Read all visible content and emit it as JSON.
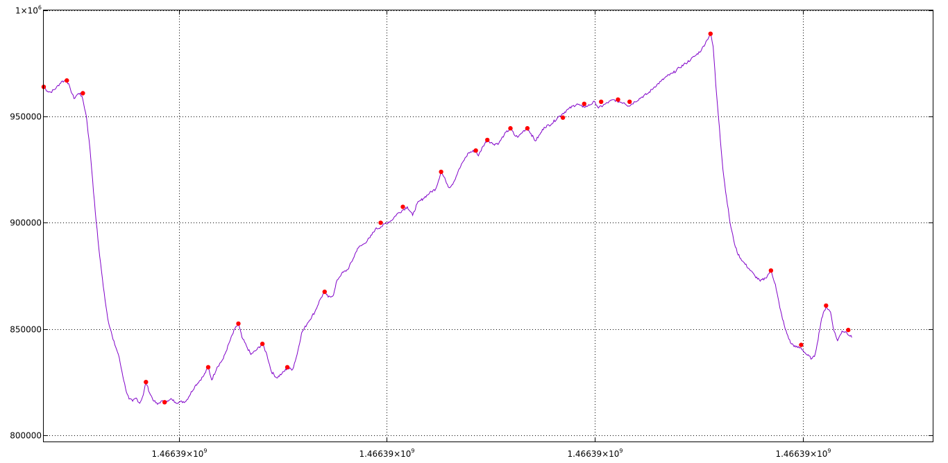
{
  "chart_data": {
    "type": "line",
    "title": "",
    "xlabel": "",
    "ylabel": "",
    "grid": true,
    "legend": "none",
    "ylim": [
      797000,
      1000000
    ],
    "xlim": [
      0,
      1000
    ],
    "colors": {
      "line": "#7f00c8",
      "marker": "#ff0000",
      "grid": "#000000"
    },
    "y_ticks": [
      {
        "v": 1000000,
        "base": "1×10",
        "exp": "6"
      },
      {
        "v": 950000,
        "base": "950000",
        "exp": ""
      },
      {
        "v": 900000,
        "base": "900000",
        "exp": ""
      },
      {
        "v": 850000,
        "base": "850000",
        "exp": ""
      },
      {
        "v": 800000,
        "base": "800000",
        "exp": ""
      }
    ],
    "x_ticks": [
      {
        "v": 152,
        "base": "1.46639×10",
        "exp": "9"
      },
      {
        "v": 386,
        "base": "1.46639×10",
        "exp": "9"
      },
      {
        "v": 620,
        "base": "1.46639×10",
        "exp": "9"
      },
      {
        "v": 854,
        "base": "1.46639×10",
        "exp": "9"
      }
    ],
    "series": [
      {
        "values": [
          [
            0,
            964000
          ],
          [
            4,
            962000
          ],
          [
            8,
            961500
          ],
          [
            14,
            963500
          ],
          [
            20,
            966500
          ],
          [
            26,
            967000
          ],
          [
            30,
            963000
          ],
          [
            34,
            958500
          ],
          [
            38,
            960500
          ],
          [
            41,
            961000
          ],
          [
            44,
            958000
          ],
          [
            48,
            950000
          ],
          [
            52,
            935000
          ],
          [
            55,
            920000
          ],
          [
            58,
            905000
          ],
          [
            62,
            888000
          ],
          [
            67,
            870000
          ],
          [
            72,
            855000
          ],
          [
            78,
            845000
          ],
          [
            84,
            838000
          ],
          [
            88,
            830000
          ],
          [
            92,
            822000
          ],
          [
            96,
            817000
          ],
          [
            100,
            816000
          ],
          [
            104,
            817500
          ],
          [
            108,
            815000
          ],
          [
            112,
            819000
          ],
          [
            115,
            825000
          ],
          [
            119,
            820000
          ],
          [
            124,
            816000
          ],
          [
            128,
            814500
          ],
          [
            132,
            816000
          ],
          [
            136,
            815500
          ],
          [
            140,
            816000
          ],
          [
            144,
            817000
          ],
          [
            148,
            815500
          ],
          [
            152,
            815500
          ],
          [
            160,
            816000
          ],
          [
            170,
            823000
          ],
          [
            180,
            828000
          ],
          [
            185,
            832000
          ],
          [
            189,
            826000
          ],
          [
            195,
            832000
          ],
          [
            202,
            836000
          ],
          [
            210,
            845000
          ],
          [
            215,
            850000
          ],
          [
            219,
            852500
          ],
          [
            223,
            846000
          ],
          [
            228,
            842000
          ],
          [
            233,
            838000
          ],
          [
            239,
            840000
          ],
          [
            246,
            843000
          ],
          [
            251,
            838000
          ],
          [
            256,
            830000
          ],
          [
            262,
            827000
          ],
          [
            268,
            829000
          ],
          [
            274,
            831500
          ],
          [
            280,
            831000
          ],
          [
            285,
            838000
          ],
          [
            290,
            848000
          ],
          [
            297,
            853000
          ],
          [
            305,
            858000
          ],
          [
            311,
            864000
          ],
          [
            316,
            867500
          ],
          [
            320,
            865000
          ],
          [
            326,
            866000
          ],
          [
            330,
            873000
          ],
          [
            335,
            876000
          ],
          [
            342,
            878000
          ],
          [
            348,
            883000
          ],
          [
            353,
            888000
          ],
          [
            360,
            890000
          ],
          [
            367,
            893000
          ],
          [
            373,
            897000
          ],
          [
            379,
            898000
          ],
          [
            386,
            900000
          ],
          [
            391,
            901000
          ],
          [
            397,
            904000
          ],
          [
            404,
            906000
          ],
          [
            409,
            907500
          ],
          [
            415,
            903500
          ],
          [
            420,
            909000
          ],
          [
            427,
            911500
          ],
          [
            434,
            914000
          ],
          [
            441,
            916000
          ],
          [
            447,
            924000
          ],
          [
            452,
            920000
          ],
          [
            456,
            916500
          ],
          [
            461,
            919000
          ],
          [
            466,
            924000
          ],
          [
            472,
            929000
          ],
          [
            478,
            933000
          ],
          [
            486,
            934000
          ],
          [
            489,
            931500
          ],
          [
            494,
            936000
          ],
          [
            499,
            939000
          ],
          [
            506,
            937000
          ],
          [
            512,
            937500
          ],
          [
            518,
            941500
          ],
          [
            525,
            944500
          ],
          [
            530,
            941000
          ],
          [
            534,
            940500
          ],
          [
            539,
            943000
          ],
          [
            544,
            944500
          ],
          [
            548,
            942000
          ],
          [
            553,
            938500
          ],
          [
            558,
            941500
          ],
          [
            563,
            945000
          ],
          [
            571,
            946500
          ],
          [
            578,
            949500
          ],
          [
            584,
            951500
          ],
          [
            590,
            953500
          ],
          [
            600,
            956000
          ],
          [
            606,
            954500
          ],
          [
            612,
            955000
          ],
          [
            620,
            957000
          ],
          [
            624,
            954000
          ],
          [
            632,
            956000
          ],
          [
            641,
            958000
          ],
          [
            647,
            957000
          ],
          [
            653,
            956500
          ],
          [
            658,
            955000
          ],
          [
            665,
            957000
          ],
          [
            672,
            959000
          ],
          [
            680,
            961000
          ],
          [
            687,
            964000
          ],
          [
            694,
            966500
          ],
          [
            701,
            969000
          ],
          [
            708,
            970500
          ],
          [
            715,
            973000
          ],
          [
            722,
            975000
          ],
          [
            728,
            977000
          ],
          [
            734,
            979000
          ],
          [
            740,
            981500
          ],
          [
            746,
            986000
          ],
          [
            750,
            989000
          ],
          [
            753,
            983000
          ],
          [
            756,
            965000
          ],
          [
            760,
            945000
          ],
          [
            764,
            925000
          ],
          [
            768,
            912000
          ],
          [
            772,
            900000
          ],
          [
            776,
            892000
          ],
          [
            780,
            886000
          ],
          [
            786,
            882000
          ],
          [
            794,
            878000
          ],
          [
            800,
            875000
          ],
          [
            806,
            872500
          ],
          [
            812,
            874000
          ],
          [
            818,
            877500
          ],
          [
            823,
            871000
          ],
          [
            828,
            860000
          ],
          [
            834,
            850000
          ],
          [
            840,
            843500
          ],
          [
            846,
            841500
          ],
          [
            852,
            841000
          ],
          [
            858,
            838000
          ],
          [
            864,
            836000
          ],
          [
            867,
            837000
          ],
          [
            870,
            843000
          ],
          [
            875,
            855000
          ],
          [
            880,
            860500
          ],
          [
            885,
            858000
          ],
          [
            889,
            849000
          ],
          [
            893,
            844500
          ],
          [
            898,
            849000
          ],
          [
            903,
            848500
          ],
          [
            909,
            846000
          ]
        ]
      }
    ],
    "markers": [
      [
        0,
        964000
      ],
      [
        26,
        967000
      ],
      [
        44,
        961000
      ],
      [
        115,
        825000
      ],
      [
        136,
        815500
      ],
      [
        185,
        832000
      ],
      [
        219,
        852500
      ],
      [
        246,
        843000
      ],
      [
        274,
        832000
      ],
      [
        316,
        867500
      ],
      [
        379,
        900000
      ],
      [
        404,
        907500
      ],
      [
        447,
        924000
      ],
      [
        486,
        934000
      ],
      [
        499,
        939000
      ],
      [
        525,
        944500
      ],
      [
        544,
        944500
      ],
      [
        584,
        949500
      ],
      [
        608,
        956000
      ],
      [
        627,
        957000
      ],
      [
        646,
        958000
      ],
      [
        659,
        957000
      ],
      [
        750,
        989000
      ],
      [
        818,
        877500
      ],
      [
        852,
        842500
      ],
      [
        880,
        861000
      ],
      [
        905,
        849500
      ]
    ]
  }
}
